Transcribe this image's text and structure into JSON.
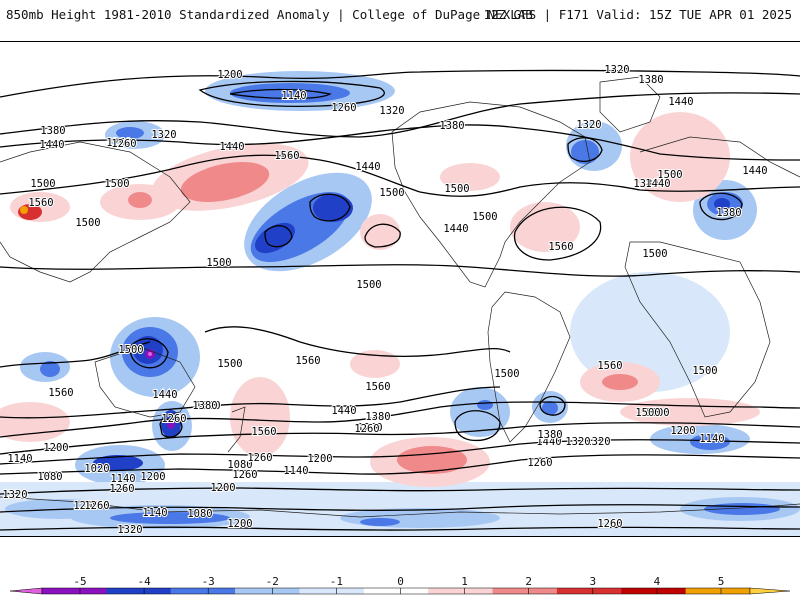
{
  "header": {
    "title": "850mb Height 1981-2010 Standardized Anomaly | College of DuPage NEXLAB",
    "run_info": "12Z GFS | F171 Valid: 15Z TUE APR 01 2025"
  },
  "contour_labels": [
    "1320",
    "1380",
    "1200",
    "1140",
    "1260",
    "1260",
    "1320",
    "1380",
    "1440",
    "1440",
    "1380",
    "1320",
    "1260",
    "1320",
    "1380",
    "1560",
    "1440",
    "1500",
    "1500",
    "1440",
    "1440",
    "1500",
    "1500",
    "1500",
    "1560",
    "1500",
    "1500",
    "1380",
    "1440",
    "1500",
    "1560",
    "1440",
    "1500",
    "1560",
    "1560",
    "1500",
    "1500",
    "1500",
    "1500",
    "1500",
    "1560",
    "1500",
    "1560",
    "1440",
    "1380",
    "1260",
    "1440",
    "1380",
    "1500",
    "1560",
    "1380",
    "1320",
    "1260",
    "1200",
    "1140",
    "1440",
    "1380",
    "1260",
    "1320",
    "1200",
    "1260",
    "1140",
    "1080",
    "1020",
    "1080",
    "1140",
    "1200",
    "1260",
    "1320",
    "1200",
    "1140",
    "1200",
    "1260",
    "1260",
    "1080",
    "1140",
    "1200",
    "1260",
    "1320",
    "1260",
    "1200"
  ],
  "colorbar": {
    "ticks": [
      "-5",
      "-4",
      "-3",
      "-2",
      "-1",
      "0",
      "1",
      "2",
      "3",
      "4",
      "5"
    ],
    "colors": [
      "#e060e0",
      "#8a10c0",
      "#2040c8",
      "#4a78e6",
      "#a8c8f4",
      "#d8e8fa",
      "#ffffff",
      "#fad4d4",
      "#f08a8a",
      "#d83030",
      "#c00000",
      "#f0a000",
      "#ffd040"
    ]
  }
}
